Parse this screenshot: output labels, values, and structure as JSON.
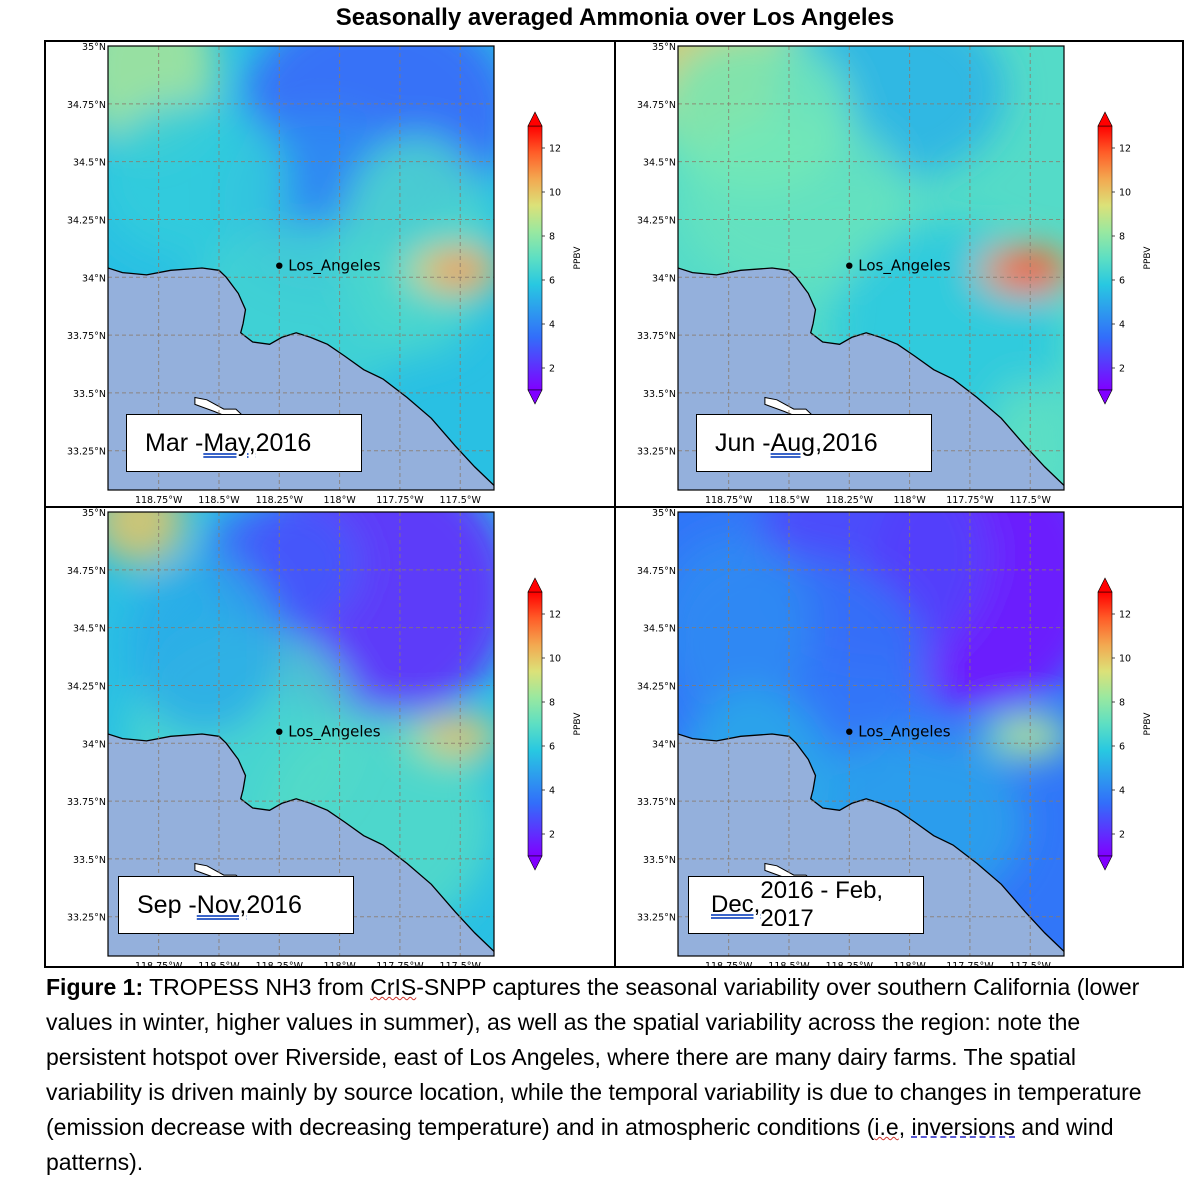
{
  "figure_title": "Seasonally averaged Ammonia over Los Angeles",
  "colorbar": {
    "label": "PPBV",
    "ticks": [
      "2",
      "4",
      "6",
      "8",
      "10",
      "12"
    ],
    "vmin": 1,
    "vmax": 13,
    "colormap": "rainbow"
  },
  "axes": {
    "lon_ticks": [
      "118.75°W",
      "118.5°W",
      "118.25°W",
      "118°W",
      "117.75°W",
      "117.5°W"
    ],
    "lat_ticks": [
      "35°N",
      "34.75°N",
      "34.5°N",
      "34.25°N",
      "34°N",
      "33.75°N",
      "33.5°N",
      "33.25°N"
    ],
    "ocean_color": "#94b0dc",
    "grid_style": "dashed"
  },
  "city": {
    "name": "Los_Angeles"
  },
  "panels": [
    {
      "id": "spring",
      "label_pre": "Mar - ",
      "label_u": "May,",
      "label_post": " 2016",
      "hotspot_ppbv": 11.5,
      "background": "medium"
    },
    {
      "id": "summer",
      "label_pre": "Jun - ",
      "label_u": "Aug,",
      "label_post": " 2016",
      "hotspot_ppbv": 13,
      "background": "high"
    },
    {
      "id": "fall",
      "label_pre": "Sep - ",
      "label_u": "Nov,",
      "label_post": " 2016",
      "hotspot_ppbv": 10.5,
      "background": "medium"
    },
    {
      "id": "winter",
      "label_pre": "",
      "label_u": "Dec,",
      "label_post": " 2016 - Feb, 2017",
      "hotspot_ppbv": 9,
      "background": "low"
    }
  ],
  "caption": {
    "lead": "Figure 1:",
    "t1": " TROPESS NH3 from ",
    "w1": "CrIS",
    "t2": "-SNPP captures the seasonal variability over southern California (lower values in winter, higher values in summer), as well as the spatial variability across the region: note the persistent hotspot over Riverside, east of Los Angeles, where there are many dairy farms. The spatial variability is driven mainly by source location, while the temporal variability is due to changes in temperature (emission decrease with decreasing temperature) and in atmospheric conditions (",
    "w2": "i.e",
    "t3": ", ",
    "w3": "inversions",
    "t4": " and wind patterns)."
  }
}
